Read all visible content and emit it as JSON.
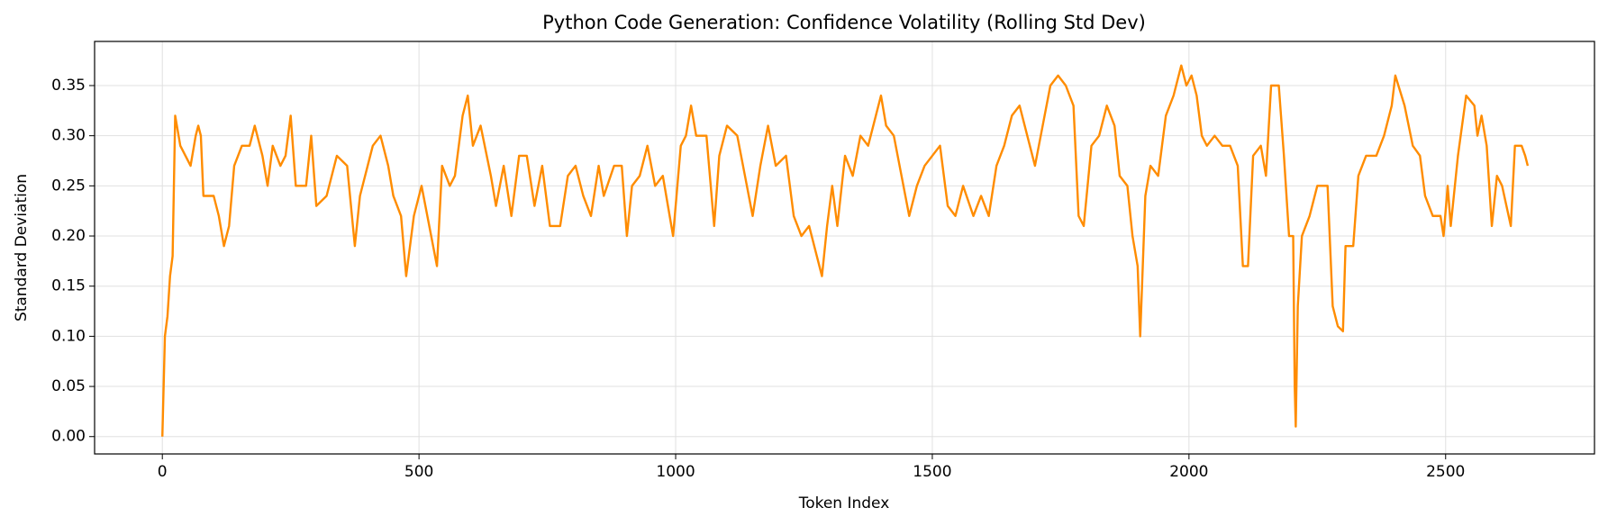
{
  "chart_data": {
    "type": "line",
    "title": "Python Code Generation: Confidence Volatility (Rolling Std Dev)",
    "x_label": "Token Index",
    "y_label": "Standard Deviation",
    "xlim": [
      -132,
      2790
    ],
    "ylim": [
      -0.0173,
      0.394
    ],
    "xticks": [
      0,
      500,
      1000,
      1500,
      2000,
      2500
    ],
    "yticks": [
      {
        "value": 0,
        "label": "0.00"
      },
      {
        "value": 0.05,
        "label": "0.05"
      },
      {
        "value": 0.1,
        "label": "0.10"
      },
      {
        "value": 0.15,
        "label": "0.15"
      },
      {
        "value": 0.2,
        "label": "0.20"
      },
      {
        "value": 0.25,
        "label": "0.25"
      },
      {
        "value": 0.3,
        "label": "0.30"
      },
      {
        "value": 0.35,
        "label": "0.35"
      }
    ],
    "grid": true,
    "x": [
      0,
      5,
      10,
      15,
      20,
      25,
      35,
      45,
      55,
      65,
      70,
      75,
      80,
      100,
      110,
      120,
      130,
      140,
      155,
      170,
      180,
      195,
      205,
      215,
      230,
      240,
      250,
      260,
      280,
      290,
      300,
      320,
      340,
      360,
      375,
      385,
      400,
      410,
      425,
      440,
      450,
      465,
      475,
      490,
      505,
      520,
      535,
      545,
      560,
      570,
      585,
      595,
      605,
      620,
      640,
      650,
      665,
      680,
      695,
      710,
      725,
      740,
      755,
      775,
      790,
      805,
      820,
      835,
      850,
      860,
      880,
      895,
      905,
      915,
      930,
      945,
      960,
      975,
      985,
      995,
      1010,
      1020,
      1030,
      1040,
      1060,
      1075,
      1085,
      1100,
      1120,
      1135,
      1150,
      1165,
      1180,
      1195,
      1215,
      1230,
      1245,
      1260,
      1275,
      1285,
      1295,
      1305,
      1315,
      1330,
      1345,
      1360,
      1375,
      1390,
      1400,
      1410,
      1425,
      1440,
      1455,
      1470,
      1485,
      1500,
      1515,
      1530,
      1545,
      1560,
      1580,
      1595,
      1610,
      1625,
      1640,
      1655,
      1670,
      1685,
      1700,
      1715,
      1730,
      1745,
      1760,
      1775,
      1785,
      1795,
      1810,
      1825,
      1840,
      1855,
      1865,
      1880,
      1890,
      1900,
      1905,
      1915,
      1925,
      1940,
      1955,
      1970,
      1985,
      1995,
      2005,
      2015,
      2025,
      2035,
      2050,
      2065,
      2080,
      2095,
      2105,
      2115,
      2125,
      2140,
      2150,
      2160,
      2175,
      2185,
      2195,
      2203,
      2206,
      2208,
      2212,
      2220,
      2235,
      2250,
      2270,
      2280,
      2290,
      2300,
      2305,
      2320,
      2330,
      2345,
      2365,
      2380,
      2395,
      2402,
      2420,
      2436,
      2450,
      2460,
      2475,
      2490,
      2496,
      2504,
      2510,
      2524,
      2540,
      2556,
      2562,
      2570,
      2580,
      2590,
      2600,
      2610,
      2627,
      2635,
      2648,
      2655,
      2660
    ],
    "series": [
      {
        "name": "Rolling Std Dev",
        "color": "#ff8c00",
        "values": [
          0.0,
          0.1,
          0.12,
          0.16,
          0.18,
          0.32,
          0.29,
          0.28,
          0.27,
          0.3,
          0.31,
          0.3,
          0.24,
          0.24,
          0.22,
          0.19,
          0.21,
          0.27,
          0.29,
          0.29,
          0.31,
          0.28,
          0.25,
          0.29,
          0.27,
          0.28,
          0.32,
          0.25,
          0.25,
          0.3,
          0.23,
          0.24,
          0.28,
          0.27,
          0.19,
          0.24,
          0.27,
          0.29,
          0.3,
          0.27,
          0.24,
          0.22,
          0.16,
          0.22,
          0.25,
          0.21,
          0.17,
          0.27,
          0.25,
          0.26,
          0.32,
          0.34,
          0.29,
          0.31,
          0.26,
          0.23,
          0.27,
          0.22,
          0.28,
          0.28,
          0.23,
          0.27,
          0.21,
          0.21,
          0.26,
          0.27,
          0.24,
          0.22,
          0.27,
          0.24,
          0.27,
          0.27,
          0.2,
          0.25,
          0.26,
          0.29,
          0.25,
          0.26,
          0.23,
          0.2,
          0.29,
          0.3,
          0.33,
          0.3,
          0.3,
          0.21,
          0.28,
          0.31,
          0.3,
          0.26,
          0.22,
          0.27,
          0.31,
          0.27,
          0.28,
          0.22,
          0.2,
          0.21,
          0.18,
          0.16,
          0.21,
          0.25,
          0.21,
          0.28,
          0.26,
          0.3,
          0.29,
          0.32,
          0.34,
          0.31,
          0.3,
          0.26,
          0.22,
          0.25,
          0.27,
          0.28,
          0.29,
          0.23,
          0.22,
          0.25,
          0.22,
          0.24,
          0.22,
          0.27,
          0.29,
          0.32,
          0.33,
          0.3,
          0.27,
          0.31,
          0.35,
          0.36,
          0.35,
          0.33,
          0.22,
          0.21,
          0.29,
          0.3,
          0.33,
          0.31,
          0.26,
          0.25,
          0.2,
          0.17,
          0.1,
          0.24,
          0.27,
          0.26,
          0.32,
          0.34,
          0.37,
          0.35,
          0.36,
          0.34,
          0.3,
          0.29,
          0.3,
          0.29,
          0.29,
          0.27,
          0.17,
          0.17,
          0.28,
          0.29,
          0.26,
          0.35,
          0.35,
          0.28,
          0.2,
          0.2,
          0.05,
          0.01,
          0.13,
          0.2,
          0.22,
          0.25,
          0.25,
          0.13,
          0.11,
          0.105,
          0.19,
          0.19,
          0.26,
          0.28,
          0.28,
          0.3,
          0.33,
          0.36,
          0.33,
          0.29,
          0.28,
          0.24,
          0.22,
          0.22,
          0.2,
          0.25,
          0.21,
          0.28,
          0.34,
          0.33,
          0.3,
          0.32,
          0.29,
          0.21,
          0.26,
          0.25,
          0.21,
          0.29,
          0.29,
          0.28,
          0.27
        ]
      }
    ]
  }
}
